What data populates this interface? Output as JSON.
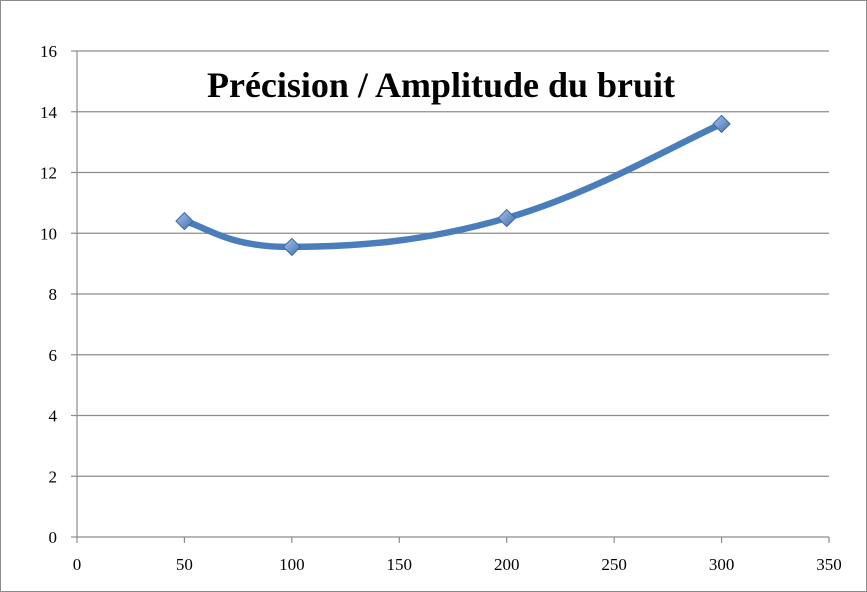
{
  "chart_data": {
    "type": "line",
    "title": "Précision / Amplitude du bruit",
    "xlabel": "",
    "ylabel": "",
    "xlim": [
      0,
      350
    ],
    "ylim": [
      0,
      16
    ],
    "x_ticks": [
      0,
      50,
      100,
      150,
      200,
      250,
      300,
      350
    ],
    "y_ticks": [
      0,
      2,
      4,
      6,
      8,
      10,
      12,
      14,
      16
    ],
    "grid": {
      "horizontal": true,
      "vertical": false
    },
    "legend": "none",
    "smooth": true,
    "series": [
      {
        "x": [
          50,
          100,
          200,
          300
        ],
        "values": [
          10.4,
          9.55,
          10.5,
          13.6
        ],
        "color": "#4a7ebb",
        "marker": "diamond"
      }
    ]
  }
}
